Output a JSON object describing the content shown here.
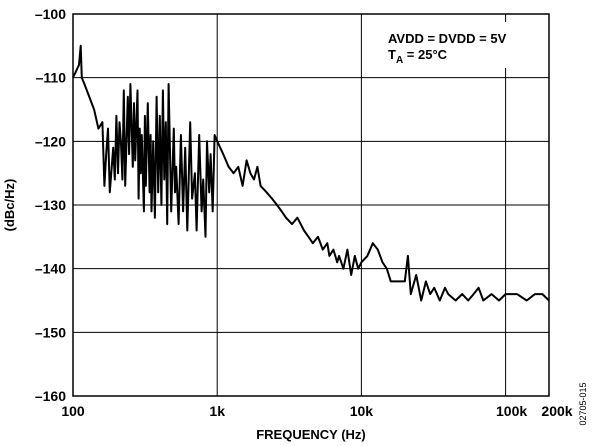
{
  "chart_data": {
    "type": "line",
    "title": "",
    "xlabel": "FREQUENCY (Hz)",
    "ylabel": "(dBc/Hz)",
    "x_scale": "log",
    "xlim": [
      100,
      200000
    ],
    "ylim": [
      -160,
      -100
    ],
    "grid": true,
    "x_ticks": [
      {
        "value": 100,
        "label": "100"
      },
      {
        "value": 1000,
        "label": "1k"
      },
      {
        "value": 10000,
        "label": "10k"
      },
      {
        "value": 100000,
        "label": "100k"
      },
      {
        "value": 200000,
        "label": "200k"
      }
    ],
    "y_ticks": [
      {
        "value": -100,
        "label": "–100"
      },
      {
        "value": -110,
        "label": "–110"
      },
      {
        "value": -120,
        "label": "–120"
      },
      {
        "value": -130,
        "label": "–130"
      },
      {
        "value": -140,
        "label": "–140"
      },
      {
        "value": -150,
        "label": "–150"
      },
      {
        "value": -160,
        "label": "–160"
      }
    ],
    "annotations": {
      "line1": "AVDD = DVDD = 5V",
      "line2_main": "T",
      "line2_sub": "A",
      "line2_rest": " = 25°C"
    },
    "side_code": "02705-015",
    "series": [
      {
        "color": "#000000",
        "x": [
          100,
          110,
          113,
          115,
          120,
          140,
          150,
          160,
          165,
          170,
          175,
          180,
          190,
          195,
          200,
          205,
          210,
          215,
          220,
          225,
          230,
          240,
          245,
          250,
          260,
          265,
          270,
          280,
          285,
          290,
          295,
          300,
          310,
          315,
          320,
          330,
          340,
          345,
          350,
          360,
          370,
          380,
          390,
          400,
          410,
          420,
          430,
          440,
          450,
          460,
          480,
          500,
          510,
          520,
          540,
          560,
          580,
          600,
          620,
          650,
          670,
          700,
          720,
          750,
          780,
          800,
          830,
          850,
          880,
          900,
          930,
          960,
          1000,
          1100,
          1200,
          1300,
          1400,
          1500,
          1600,
          1700,
          1800,
          1900,
          2000,
          2200,
          2400,
          2600,
          2800,
          3000,
          3300,
          3600,
          4000,
          4300,
          4600,
          5000,
          5400,
          5800,
          6000,
          6400,
          6800,
          7000,
          7500,
          8000,
          8500,
          9000,
          9500,
          10000,
          11000,
          12000,
          13000,
          14000,
          15000,
          16000,
          18000,
          20000,
          21000,
          22000,
          24000,
          26000,
          28000,
          30000,
          32000,
          35000,
          38000,
          40000,
          45000,
          50000,
          55000,
          60000,
          65000,
          70000,
          80000,
          90000,
          100000,
          110000,
          120000,
          140000,
          160000,
          180000,
          200000
        ],
        "y": [
          -110,
          -108,
          -105,
          -110,
          -111,
          -115,
          -118,
          -117,
          -127,
          -122,
          -118,
          -128,
          -121,
          -126,
          -116,
          -125,
          -117,
          -120,
          -126,
          -112,
          -127,
          -113,
          -122,
          -111,
          -124,
          -114,
          -123,
          -112,
          -129,
          -118,
          -125,
          -119,
          -131,
          -116,
          -127,
          -114,
          -128,
          -119,
          -131,
          -120,
          -132,
          -113,
          -128,
          -116,
          -130,
          -112,
          -126,
          -117,
          -133,
          -111,
          -131,
          -118,
          -128,
          -124,
          -133,
          -119,
          -131,
          -121,
          -134,
          -117,
          -129,
          -125,
          -134,
          -119,
          -131,
          -126,
          -135,
          -120,
          -128,
          -122,
          -131,
          -119,
          -120,
          -122,
          -124,
          -125,
          -124,
          -127,
          -123,
          -125,
          -126,
          -124,
          -127,
          -128,
          -129,
          -130,
          -131,
          -132,
          -133,
          -132,
          -134,
          -135,
          -136,
          -135,
          -137,
          -136,
          -138,
          -137,
          -139,
          -138,
          -140,
          -137,
          -141,
          -138,
          -140,
          -139,
          -138,
          -136,
          -137,
          -139,
          -140,
          -142,
          -142,
          -142,
          -138,
          -144,
          -141,
          -145,
          -142,
          -144,
          -143,
          -145,
          -143,
          -144,
          -145,
          -144,
          -145,
          -144,
          -143,
          -145,
          -144,
          -145,
          -144,
          -144,
          -144,
          -145,
          -144,
          -144,
          -145
        ]
      }
    ]
  }
}
